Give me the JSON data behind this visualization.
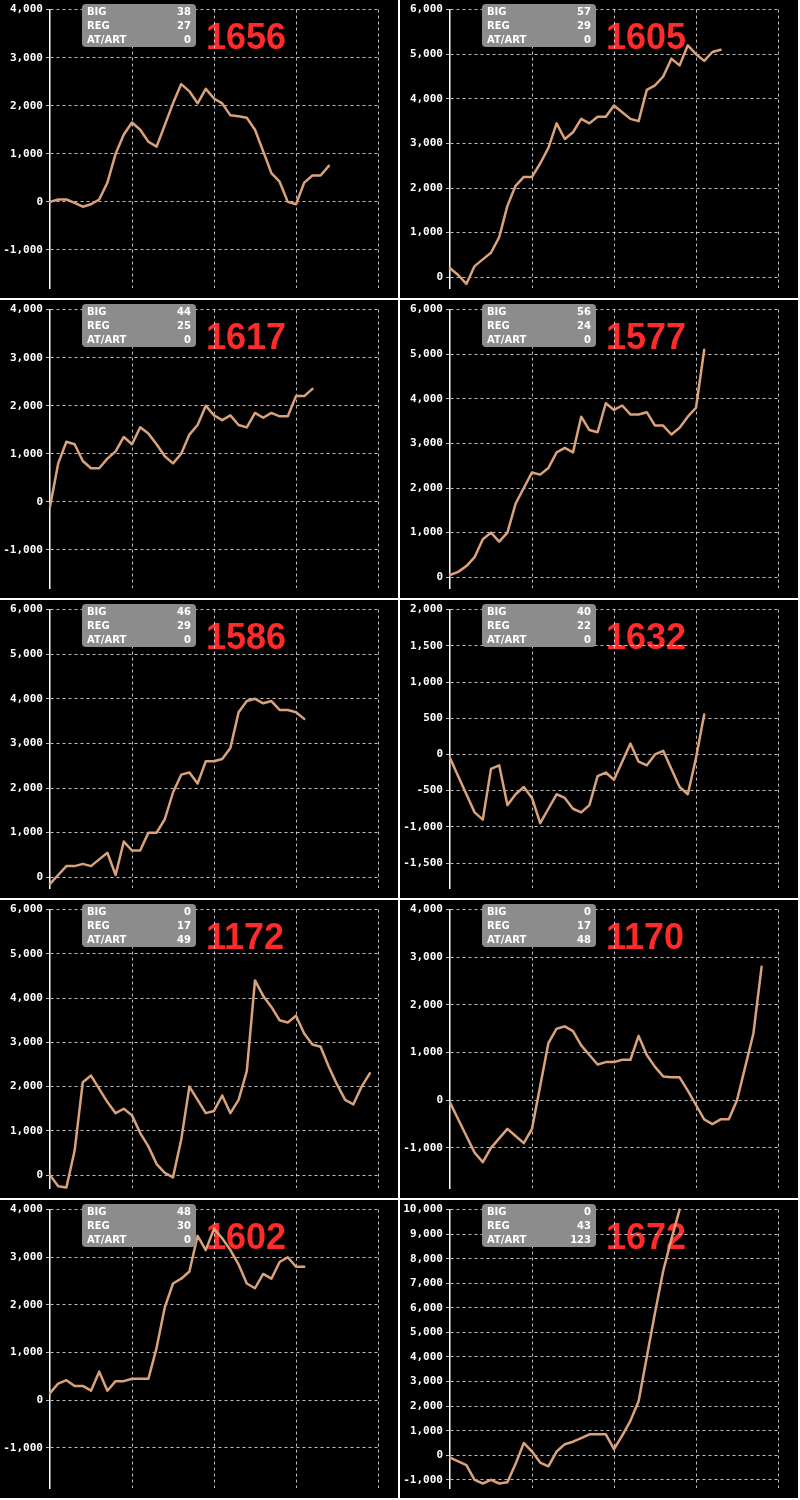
{
  "chart_data": [
    {
      "type": "line",
      "title": "1656",
      "annotations": [
        "BIG",
        "38",
        "REG",
        "27",
        "AT/ART",
        "0"
      ],
      "tick_labels": "y",
      "grid": true,
      "legend": false,
      "categories": [
        null,
        null,
        null,
        null,
        null,
        null,
        null,
        null,
        null,
        null,
        null,
        null,
        null,
        null,
        null,
        null,
        null,
        null,
        null,
        null,
        null,
        null,
        null,
        null,
        null,
        null,
        null,
        null,
        null,
        null,
        null,
        null,
        null,
        null,
        null,
        null,
        null,
        null,
        null,
        null,
        null
      ],
      "series": [
        {
          "color": "#d9a27a",
          "values": [
            0,
            50,
            50,
            -20,
            -100,
            -50,
            50,
            400,
            1000,
            1400,
            1650,
            1500,
            1250,
            1150,
            1600,
            2050,
            2450,
            2300,
            2050,
            2350,
            2150,
            2050,
            1800,
            1780,
            1750,
            1500,
            1050,
            600,
            420,
            0,
            -50,
            400,
            550,
            550,
            750,
            null,
            null,
            null,
            null,
            null,
            null
          ]
        }
      ],
      "ylim": [
        -1800,
        4000
      ],
      "yticks": [
        {
          "value": -1000,
          "label": "-1,000"
        },
        0,
        {
          "value": 1000,
          "label": "1,000"
        },
        {
          "value": 2000,
          "label": "2,000"
        },
        {
          "value": 3000,
          "label": "3,000"
        },
        {
          "value": 4000,
          "label": "4,000"
        }
      ]
    },
    {
      "type": "line",
      "title": "1605",
      "annotations": [
        "BIG",
        "57",
        "REG",
        "29",
        "AT/ART",
        "0"
      ],
      "tick_labels": "y",
      "grid": true,
      "legend": false,
      "categories": [
        null,
        null,
        null,
        null,
        null,
        null,
        null,
        null,
        null,
        null,
        null,
        null,
        null,
        null,
        null,
        null,
        null,
        null,
        null,
        null,
        null,
        null,
        null,
        null,
        null,
        null,
        null,
        null,
        null,
        null,
        null,
        null,
        null,
        null,
        null,
        null,
        null,
        null,
        null,
        null,
        null
      ],
      "series": [
        {
          "color": "#d9a27a",
          "values": [
            200,
            50,
            -150,
            250,
            400,
            550,
            900,
            1600,
            2050,
            2250,
            2250,
            2550,
            2900,
            3450,
            3100,
            3250,
            3550,
            3450,
            3600,
            3600,
            3850,
            3700,
            3550,
            3500,
            4200,
            4300,
            4500,
            4900,
            4750,
            5200,
            5000,
            4850,
            5050,
            5100,
            null,
            null,
            null,
            null,
            null,
            null,
            null
          ]
        }
      ],
      "ylim": [
        -250,
        6000
      ],
      "yticks": [
        0,
        {
          "value": 1000,
          "label": "1,000"
        },
        {
          "value": 2000,
          "label": "2,000"
        },
        {
          "value": 3000,
          "label": "3,000"
        },
        {
          "value": 4000,
          "label": "4,000"
        },
        {
          "value": 5000,
          "label": "5,000"
        },
        {
          "value": 6000,
          "label": "6,000"
        }
      ]
    },
    {
      "type": "line",
      "title": "1617",
      "annotations": [
        "BIG",
        "44",
        "REG",
        "25",
        "AT/ART",
        "0"
      ],
      "tick_labels": "y",
      "grid": true,
      "legend": false,
      "categories": [
        null,
        null,
        null,
        null,
        null,
        null,
        null,
        null,
        null,
        null,
        null,
        null,
        null,
        null,
        null,
        null,
        null,
        null,
        null,
        null,
        null,
        null,
        null,
        null,
        null,
        null,
        null,
        null,
        null,
        null,
        null,
        null,
        null,
        null,
        null,
        null,
        null,
        null,
        null,
        null,
        null
      ],
      "series": [
        {
          "color": "#d9a27a",
          "values": [
            -100,
            800,
            1250,
            1200,
            850,
            700,
            700,
            900,
            1050,
            1350,
            1200,
            1550,
            1420,
            1200,
            950,
            800,
            1000,
            1400,
            1600,
            2000,
            1800,
            1700,
            1800,
            1600,
            1550,
            1850,
            1750,
            1850,
            1780,
            1780,
            2200,
            2200,
            2350,
            null,
            null,
            null,
            null,
            null,
            null,
            null,
            null
          ]
        }
      ],
      "ylim": [
        -1800,
        4000
      ],
      "yticks": [
        {
          "value": -1000,
          "label": "-1,000"
        },
        0,
        {
          "value": 1000,
          "label": "1,000"
        },
        {
          "value": 2000,
          "label": "2,000"
        },
        {
          "value": 3000,
          "label": "3,000"
        },
        {
          "value": 4000,
          "label": "4,000"
        }
      ]
    },
    {
      "type": "line",
      "title": "1577",
      "annotations": [
        "BIG",
        "56",
        "REG",
        "24",
        "AT/ART",
        "0"
      ],
      "tick_labels": "y",
      "grid": true,
      "legend": false,
      "categories": [
        null,
        null,
        null,
        null,
        null,
        null,
        null,
        null,
        null,
        null,
        null,
        null,
        null,
        null,
        null,
        null,
        null,
        null,
        null,
        null,
        null,
        null,
        null,
        null,
        null,
        null,
        null,
        null,
        null,
        null,
        null,
        null,
        null,
        null,
        null,
        null,
        null,
        null,
        null,
        null,
        null
      ],
      "series": [
        {
          "color": "#d9a27a",
          "values": [
            50,
            120,
            250,
            450,
            850,
            1000,
            800,
            1000,
            1650,
            2000,
            2350,
            2300,
            2450,
            2800,
            2900,
            2800,
            3600,
            3300,
            3250,
            3900,
            3750,
            3850,
            3650,
            3650,
            3700,
            3400,
            3400,
            3200,
            3350,
            3600,
            3800,
            5100,
            null,
            null,
            null,
            null,
            null,
            null,
            null,
            null,
            null
          ]
        }
      ],
      "ylim": [
        -250,
        6000
      ],
      "yticks": [
        0,
        {
          "value": 1000,
          "label": "1,000"
        },
        {
          "value": 2000,
          "label": "2,000"
        },
        {
          "value": 3000,
          "label": "3,000"
        },
        {
          "value": 4000,
          "label": "4,000"
        },
        {
          "value": 5000,
          "label": "5,000"
        },
        {
          "value": 6000,
          "label": "6,000"
        }
      ]
    },
    {
      "type": "line",
      "title": "1586",
      "annotations": [
        "BIG",
        "46",
        "REG",
        "29",
        "AT/ART",
        "0"
      ],
      "tick_labels": "y",
      "grid": true,
      "legend": false,
      "categories": [
        null,
        null,
        null,
        null,
        null,
        null,
        null,
        null,
        null,
        null,
        null,
        null,
        null,
        null,
        null,
        null,
        null,
        null,
        null,
        null,
        null,
        null,
        null,
        null,
        null,
        null,
        null,
        null,
        null,
        null,
        null,
        null,
        null,
        null,
        null,
        null,
        null,
        null,
        null,
        null,
        null
      ],
      "series": [
        {
          "color": "#d9a27a",
          "values": [
            -150,
            50,
            250,
            250,
            300,
            250,
            400,
            550,
            50,
            800,
            600,
            600,
            1000,
            1000,
            1300,
            1900,
            2300,
            2350,
            2100,
            2600,
            2600,
            2650,
            2900,
            3700,
            3950,
            4000,
            3900,
            3950,
            3750,
            3750,
            3700,
            3550,
            null,
            null,
            null,
            null,
            null,
            null,
            null,
            null,
            null
          ]
        }
      ],
      "ylim": [
        -250,
        6000
      ],
      "yticks": [
        0,
        {
          "value": 1000,
          "label": "1,000"
        },
        {
          "value": 2000,
          "label": "2,000"
        },
        {
          "value": 3000,
          "label": "3,000"
        },
        {
          "value": 4000,
          "label": "4,000"
        },
        {
          "value": 5000,
          "label": "5,000"
        },
        {
          "value": 6000,
          "label": "6,000"
        }
      ]
    },
    {
      "type": "line",
      "title": "1632",
      "annotations": [
        "BIG",
        "40",
        "REG",
        "22",
        "AT/ART",
        "0"
      ],
      "tick_labels": "y",
      "grid": true,
      "legend": false,
      "categories": [
        null,
        null,
        null,
        null,
        null,
        null,
        null,
        null,
        null,
        null,
        null,
        null,
        null,
        null,
        null,
        null,
        null,
        null,
        null,
        null,
        null,
        null,
        null,
        null,
        null,
        null,
        null,
        null,
        null,
        null,
        null,
        null,
        null,
        null,
        null,
        null,
        null,
        null,
        null,
        null,
        null
      ],
      "series": [
        {
          "color": "#d9a27a",
          "values": [
            -50,
            -300,
            -550,
            -800,
            -900,
            -200,
            -150,
            -700,
            -550,
            -450,
            -600,
            -950,
            -750,
            -550,
            -600,
            -750,
            -800,
            -700,
            -300,
            -250,
            -350,
            -100,
            150,
            -100,
            -150,
            0,
            50,
            -200,
            -450,
            -550,
            -50,
            550,
            null,
            null,
            null,
            null,
            null,
            null,
            null,
            null,
            null
          ]
        }
      ],
      "ylim": [
        -1850,
        2000
      ],
      "yticks": [
        {
          "value": -1500,
          "label": "-1,500"
        },
        {
          "value": -1000,
          "label": "-1,000"
        },
        -500,
        0,
        500,
        {
          "value": 1000,
          "label": "1,000"
        },
        {
          "value": 1500,
          "label": "1,500"
        },
        {
          "value": 2000,
          "label": "2,000"
        }
      ]
    },
    {
      "type": "line",
      "title": "1172",
      "annotations": [
        "BIG",
        "0",
        "REG",
        "17",
        "AT/ART",
        "49"
      ],
      "tick_labels": "y",
      "grid": true,
      "legend": false,
      "categories": [
        null,
        null,
        null,
        null,
        null,
        null,
        null,
        null,
        null,
        null,
        null,
        null,
        null,
        null,
        null,
        null,
        null,
        null,
        null,
        null,
        null,
        null,
        null,
        null,
        null,
        null,
        null,
        null,
        null,
        null,
        null,
        null,
        null,
        null,
        null,
        null,
        null,
        null,
        null,
        null,
        null
      ],
      "series": [
        {
          "color": "#d9a27a",
          "values": [
            0,
            -250,
            -280,
            550,
            2100,
            2250,
            1950,
            1650,
            1400,
            1500,
            1350,
            950,
            650,
            250,
            50,
            -50,
            800,
            2000,
            1700,
            1400,
            1450,
            1800,
            1400,
            1700,
            2350,
            4400,
            4050,
            3800,
            3500,
            3450,
            3600,
            3200,
            2950,
            2900,
            2450,
            2050,
            1700,
            1600,
            2000,
            2300,
            null
          ]
        }
      ],
      "ylim": [
        -300,
        6000
      ],
      "yticks": [
        0,
        {
          "value": 1000,
          "label": "1,000"
        },
        {
          "value": 2000,
          "label": "2,000"
        },
        {
          "value": 3000,
          "label": "3,000"
        },
        {
          "value": 4000,
          "label": "4,000"
        },
        {
          "value": 5000,
          "label": "5,000"
        },
        {
          "value": 6000,
          "label": "6,000"
        }
      ]
    },
    {
      "type": "line",
      "title": "1170",
      "annotations": [
        "BIG",
        "0",
        "REG",
        "17",
        "AT/ART",
        "48"
      ],
      "tick_labels": "y",
      "grid": true,
      "legend": false,
      "categories": [
        null,
        null,
        null,
        null,
        null,
        null,
        null,
        null,
        null,
        null,
        null,
        null,
        null,
        null,
        null,
        null,
        null,
        null,
        null,
        null,
        null,
        null,
        null,
        null,
        null,
        null,
        null,
        null,
        null,
        null,
        null,
        null,
        null,
        null,
        null,
        null,
        null,
        null,
        null,
        null,
        null
      ],
      "series": [
        {
          "color": "#d9a27a",
          "values": [
            -50,
            -400,
            -750,
            -1100,
            -1300,
            -1000,
            -800,
            -600,
            -750,
            -900,
            -600,
            300,
            1200,
            1500,
            1550,
            1450,
            1150,
            950,
            750,
            800,
            800,
            850,
            850,
            1350,
            950,
            700,
            500,
            480,
            480,
            200,
            -100,
            -400,
            -500,
            -400,
            -400,
            0,
            700,
            1400,
            2800,
            null,
            null
          ]
        }
      ],
      "ylim": [
        -1850,
        4000
      ],
      "yticks": [
        {
          "value": -1000,
          "label": "-1,000"
        },
        0,
        {
          "value": 1000,
          "label": "1,000"
        },
        {
          "value": 2000,
          "label": "2,000"
        },
        {
          "value": 3000,
          "label": "3,000"
        },
        {
          "value": 4000,
          "label": "4,000"
        }
      ]
    },
    {
      "type": "line",
      "title": "1602",
      "annotations": [
        "BIG",
        "48",
        "REG",
        "30",
        "AT/ART",
        "0"
      ],
      "tick_labels": "y",
      "grid": true,
      "legend": false,
      "categories": [
        null,
        null,
        null,
        null,
        null,
        null,
        null,
        null,
        null,
        null,
        null,
        null,
        null,
        null,
        null,
        null,
        null,
        null,
        null,
        null,
        null,
        null,
        null,
        null,
        null,
        null,
        null,
        null,
        null,
        null,
        null,
        null,
        null,
        null,
        null,
        null,
        null,
        null,
        null,
        null,
        null
      ],
      "series": [
        {
          "color": "#d9a27a",
          "values": [
            150,
            350,
            420,
            300,
            300,
            200,
            600,
            200,
            400,
            400,
            450,
            450,
            450,
            1100,
            1950,
            2450,
            2550,
            2700,
            3450,
            3150,
            3600,
            3400,
            3150,
            2850,
            2450,
            2350,
            2650,
            2550,
            2900,
            3000,
            2800,
            2800,
            null,
            null,
            null,
            null,
            null,
            null,
            null,
            null,
            null
          ]
        }
      ],
      "ylim": [
        -1850,
        4000
      ],
      "yticks": [
        {
          "value": -1000,
          "label": "-1,000"
        },
        0,
        {
          "value": 1000,
          "label": "1,000"
        },
        {
          "value": 2000,
          "label": "2,000"
        },
        {
          "value": 3000,
          "label": "3,000"
        },
        {
          "value": 4000,
          "label": "4,000"
        }
      ]
    },
    {
      "type": "line",
      "title": "1672",
      "annotations": [
        "BIG",
        "0",
        "REG",
        "43",
        "AT/ART",
        "123"
      ],
      "tick_labels": "y",
      "grid": true,
      "legend": false,
      "categories": [
        null,
        null,
        null,
        null,
        null,
        null,
        null,
        null,
        null,
        null,
        null,
        null,
        null,
        null,
        null,
        null,
        null,
        null,
        null,
        null,
        null,
        null,
        null,
        null,
        null,
        null,
        null,
        null,
        null,
        null,
        null,
        null,
        null,
        null,
        null,
        null,
        null,
        null,
        null,
        null,
        null
      ],
      "series": [
        {
          "color": "#d9a27a",
          "values": [
            -100,
            -250,
            -400,
            -1000,
            -1150,
            -1000,
            -1150,
            -1100,
            -350,
            500,
            150,
            -300,
            -450,
            150,
            450,
            550,
            700,
            850,
            850,
            850,
            250,
            800,
            1400,
            2200,
            4000,
            5800,
            7500,
            8800,
            10000,
            null,
            null,
            null,
            null,
            null,
            null,
            null,
            null,
            null,
            null,
            null,
            null
          ]
        }
      ],
      "ylim": [
        -1350,
        10000
      ],
      "yticks": [
        {
          "value": -1000,
          "label": "-1,000"
        },
        0,
        {
          "value": 1000,
          "label": "1,000"
        },
        {
          "value": 2000,
          "label": "2,000"
        },
        {
          "value": 3000,
          "label": "3,000"
        },
        {
          "value": 4000,
          "label": "4,000"
        },
        {
          "value": 5000,
          "label": "5,000"
        },
        {
          "value": 6000,
          "label": "6,000"
        },
        {
          "value": 7000,
          "label": "7,000"
        },
        {
          "value": 8000,
          "label": "8,000"
        },
        {
          "value": 9000,
          "label": "9,000"
        },
        {
          "value": 10000,
          "label": "10,000"
        }
      ]
    }
  ]
}
